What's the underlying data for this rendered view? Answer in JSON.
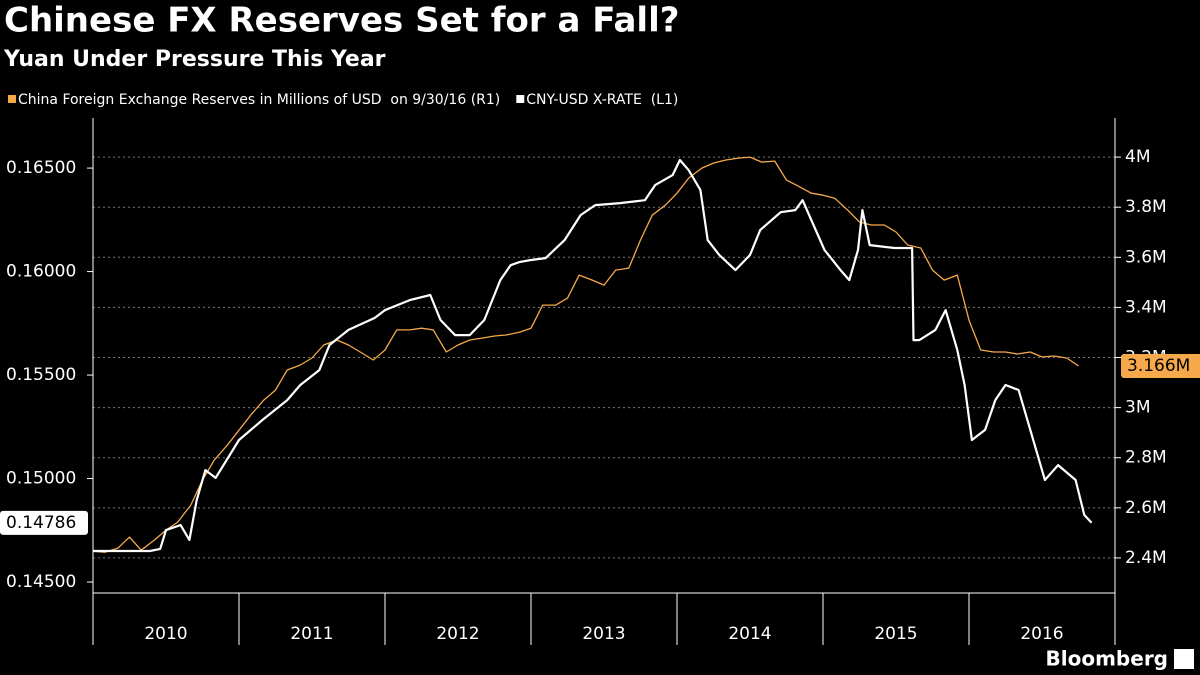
{
  "chart_data": {
    "type": "line",
    "title": "Chinese FX Reserves Set for a Fall?",
    "subtitle": "Yuan Under Pressure This Year",
    "source": "Bloomberg",
    "xlim": [
      2010,
      2017
    ],
    "xticks": [
      2010,
      2011,
      2012,
      2013,
      2014,
      2015,
      2016
    ],
    "ylim": [
      0.14447,
      0.16742
    ],
    "yticks": [
      {
        "value": 0.145,
        "label": "0.14500"
      },
      {
        "value": 0.15,
        "label": "0.15000"
      },
      {
        "value": 0.155,
        "label": "0.15500"
      },
      {
        "value": 0.16,
        "label": "0.16000"
      },
      {
        "value": 0.165,
        "label": "0.16500"
      }
    ],
    "y2lim": [
      2260000,
      4156000
    ],
    "y2ticks": [
      {
        "value": 2400000,
        "label": "2.4M"
      },
      {
        "value": 2600000,
        "label": "2.6M"
      },
      {
        "value": 2800000,
        "label": "2.8M"
      },
      {
        "value": 3000000,
        "label": "3M"
      },
      {
        "value": 3200000,
        "label": "3.2M"
      },
      {
        "value": 3400000,
        "label": "3.4M"
      },
      {
        "value": 3600000,
        "label": "3.6M"
      },
      {
        "value": 3800000,
        "label": "3.8M"
      },
      {
        "value": 4000000,
        "label": "4M"
      }
    ],
    "grid": "y2",
    "series": [
      {
        "name": "China Foreign Exchange Reserves in Millions of USD  on 9/30/16 (R1)",
        "color": "#f5a94a",
        "axis": "y2",
        "x": [
          2010,
          2010.08,
          2010.17,
          2010.25,
          2010.33,
          2010.42,
          2010.5,
          2010.58,
          2010.67,
          2010.75,
          2010.83,
          2010.92,
          2011,
          2011.08,
          2011.17,
          2011.25,
          2011.33,
          2011.42,
          2011.5,
          2011.58,
          2011.67,
          2011.75,
          2011.83,
          2011.92,
          2012,
          2012.08,
          2012.17,
          2012.25,
          2012.33,
          2012.42,
          2012.5,
          2012.58,
          2012.67,
          2012.75,
          2012.83,
          2012.92,
          2013,
          2013.08,
          2013.17,
          2013.25,
          2013.33,
          2013.42,
          2013.5,
          2013.58,
          2013.67,
          2013.75,
          2013.83,
          2013.92,
          2014,
          2014.08,
          2014.17,
          2014.25,
          2014.33,
          2014.42,
          2014.5,
          2014.58,
          2014.67,
          2014.75,
          2014.83,
          2014.92,
          2015,
          2015.08,
          2015.17,
          2015.25,
          2015.33,
          2015.42,
          2015.5,
          2015.58,
          2015.67,
          2015.75,
          2015.83,
          2015.92,
          2016,
          2016.08,
          2016.17,
          2016.25,
          2016.33,
          2016.42,
          2016.5,
          2016.58,
          2016.67,
          2016.75
        ],
        "values": [
          2427000,
          2423000,
          2439000,
          2483000,
          2431000,
          2471000,
          2511000,
          2543000,
          2611000,
          2711000,
          2790000,
          2850000,
          2910000,
          2970000,
          3030000,
          3070000,
          3150000,
          3170000,
          3198000,
          3250000,
          3270000,
          3250000,
          3222000,
          3190000,
          3230000,
          3310000,
          3310000,
          3317000,
          3310000,
          3222000,
          3250000,
          3270000,
          3278000,
          3286000,
          3290000,
          3301000,
          3317000,
          3409000,
          3409000,
          3437000,
          3529000,
          3509000,
          3489000,
          3549000,
          3557000,
          3669000,
          3768000,
          3808000,
          3856000,
          3916000,
          3956000,
          3976000,
          3988000,
          3996000,
          4000000,
          3980000,
          3984000,
          3908000,
          3884000,
          3856000,
          3848000,
          3836000,
          3788000,
          3741000,
          3729000,
          3729000,
          3701000,
          3649000,
          3637000,
          3549000,
          3509000,
          3529000,
          3349000,
          3230000,
          3222000,
          3222000,
          3214000,
          3222000,
          3202000,
          3206000,
          3198000,
          3166000
        ],
        "value_labels": [
          null,
          null,
          null,
          null,
          null,
          null,
          null,
          null,
          null,
          null,
          null,
          null,
          null,
          null,
          null,
          null,
          null,
          null,
          null,
          null,
          null,
          null,
          null,
          null,
          null,
          null,
          null,
          null,
          null,
          null,
          null,
          null,
          null,
          null,
          null,
          null,
          null,
          null,
          null,
          null,
          null,
          null,
          null,
          null,
          null,
          null,
          null,
          null,
          null,
          null,
          null,
          null,
          null,
          null,
          null,
          null,
          null,
          null,
          null,
          null,
          null,
          null,
          null,
          null,
          null,
          null,
          null,
          null,
          null,
          null,
          null,
          null,
          null,
          null,
          null,
          null,
          null,
          null,
          null,
          null,
          null,
          "3.166M"
        ]
      },
      {
        "name": "CNY-USD X-RATE  (L1)",
        "color": "#ffffff",
        "axis": "y",
        "x": [
          2010,
          2010.39,
          2010.46,
          2010.5,
          2010.6,
          2010.66,
          2010.71,
          2010.77,
          2010.84,
          2011,
          2011.16,
          2011.33,
          2011.42,
          2011.55,
          2011.62,
          2011.75,
          2011.93,
          2012,
          2012.17,
          2012.31,
          2012.38,
          2012.48,
          2012.58,
          2012.68,
          2012.79,
          2012.86,
          2012.92,
          2013,
          2013.1,
          2013.23,
          2013.34,
          2013.44,
          2013.61,
          2013.78,
          2013.85,
          2013.97,
          2014.02,
          2014.08,
          2014.16,
          2014.21,
          2014.29,
          2014.4,
          2014.5,
          2014.57,
          2014.71,
          2014.81,
          2014.86,
          2014.95,
          2015.01,
          2015.12,
          2015.18,
          2015.24,
          2015.27,
          2015.32,
          2015.49,
          2015.61,
          2015.62,
          2015.66,
          2015.77,
          2015.84,
          2015.92,
          2015.97,
          2016.02,
          2016.11,
          2016.18,
          2016.25,
          2016.34,
          2016.42,
          2016.52,
          2016.61,
          2016.73,
          2016.79,
          2016.84
        ],
        "values": [
          0.1465,
          0.1465,
          0.1466,
          0.14751,
          0.14775,
          0.14703,
          0.14896,
          0.15041,
          0.15003,
          0.15186,
          0.15283,
          0.15379,
          0.15452,
          0.15524,
          0.15645,
          0.15718,
          0.15776,
          0.15814,
          0.15862,
          0.15887,
          0.15766,
          0.15693,
          0.15693,
          0.15766,
          0.15959,
          0.16031,
          0.16046,
          0.16056,
          0.16065,
          0.16152,
          0.16273,
          0.16321,
          0.16331,
          0.16345,
          0.16418,
          0.16466,
          0.16539,
          0.1649,
          0.16394,
          0.16152,
          0.1608,
          0.16007,
          0.1608,
          0.16201,
          0.16287,
          0.16297,
          0.16345,
          0.16201,
          0.16104,
          0.16007,
          0.15959,
          0.16104,
          0.16297,
          0.16128,
          0.16114,
          0.16114,
          0.15669,
          0.15669,
          0.15718,
          0.15814,
          0.15621,
          0.15452,
          0.15186,
          0.15235,
          0.15379,
          0.15452,
          0.15428,
          0.15235,
          0.14993,
          0.15065,
          0.14993,
          0.14824,
          0.14786
        ],
        "value_labels": [
          null,
          null,
          null,
          null,
          null,
          null,
          null,
          null,
          null,
          null,
          null,
          null,
          null,
          null,
          null,
          null,
          null,
          null,
          null,
          null,
          null,
          null,
          null,
          null,
          null,
          null,
          null,
          null,
          null,
          null,
          null,
          null,
          null,
          null,
          null,
          null,
          null,
          null,
          null,
          null,
          null,
          null,
          null,
          null,
          null,
          null,
          null,
          null,
          null,
          null,
          null,
          null,
          null,
          null,
          null,
          null,
          null,
          null,
          null,
          null,
          null,
          null,
          null,
          null,
          null,
          null,
          null,
          null,
          null,
          null,
          null,
          null,
          "0.14786"
        ]
      }
    ]
  }
}
